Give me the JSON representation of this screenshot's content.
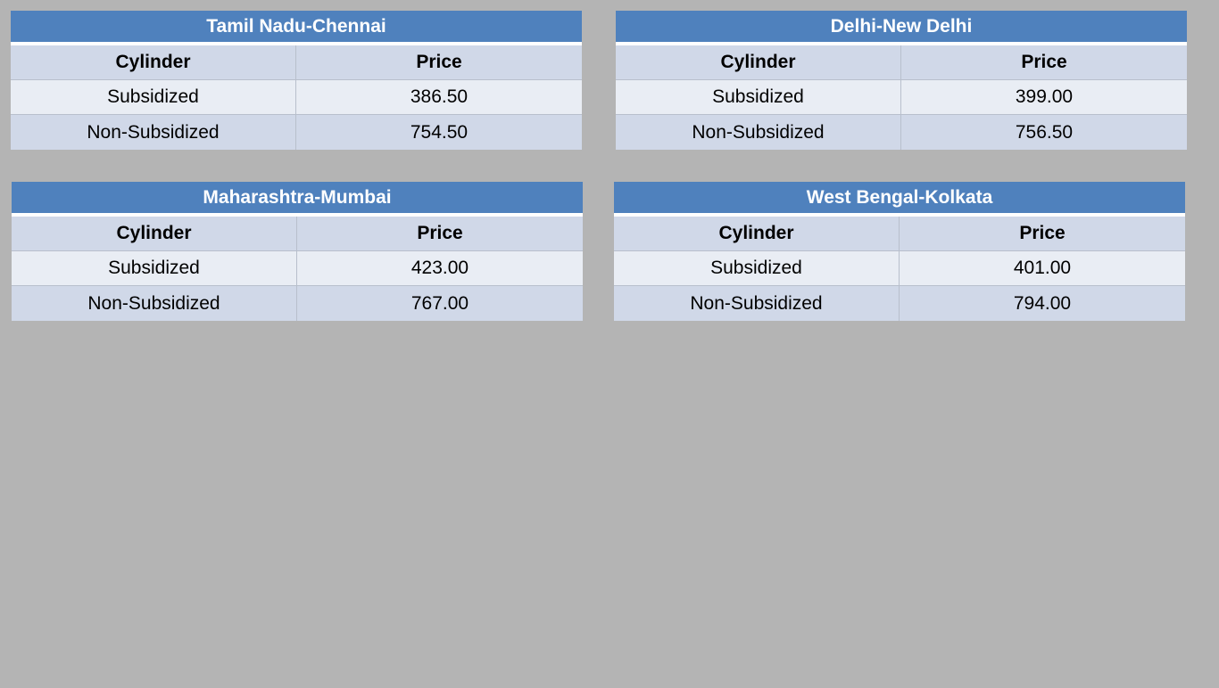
{
  "tables": [
    {
      "title": "Tamil Nadu-Chennai",
      "headers": [
        "Cylinder",
        "Price"
      ],
      "rows": [
        [
          "Subsidized",
          "386.50"
        ],
        [
          "Non-Subsidized",
          "754.50"
        ]
      ]
    },
    {
      "title": "Delhi-New Delhi",
      "headers": [
        "Cylinder",
        "Price"
      ],
      "rows": [
        [
          "Subsidized",
          "399.00"
        ],
        [
          "Non-Subsidized",
          "756.50"
        ]
      ]
    },
    {
      "title": "Maharashtra-Mumbai",
      "headers": [
        "Cylinder",
        "Price"
      ],
      "rows": [
        [
          "Subsidized",
          "423.00"
        ],
        [
          "Non-Subsidized",
          "767.00"
        ]
      ]
    },
    {
      "title": "West Bengal-Kolkata",
      "headers": [
        "Cylinder",
        "Price"
      ],
      "rows": [
        [
          "Subsidized",
          "401.00"
        ],
        [
          "Non-Subsidized",
          "794.00"
        ]
      ]
    }
  ],
  "colors": {
    "background": "#b4b4b4",
    "title_bar": "#4f81bd",
    "header_row": "#d0d8e8",
    "band_light": "#e9edf4",
    "band_dark": "#d0d8e8"
  }
}
